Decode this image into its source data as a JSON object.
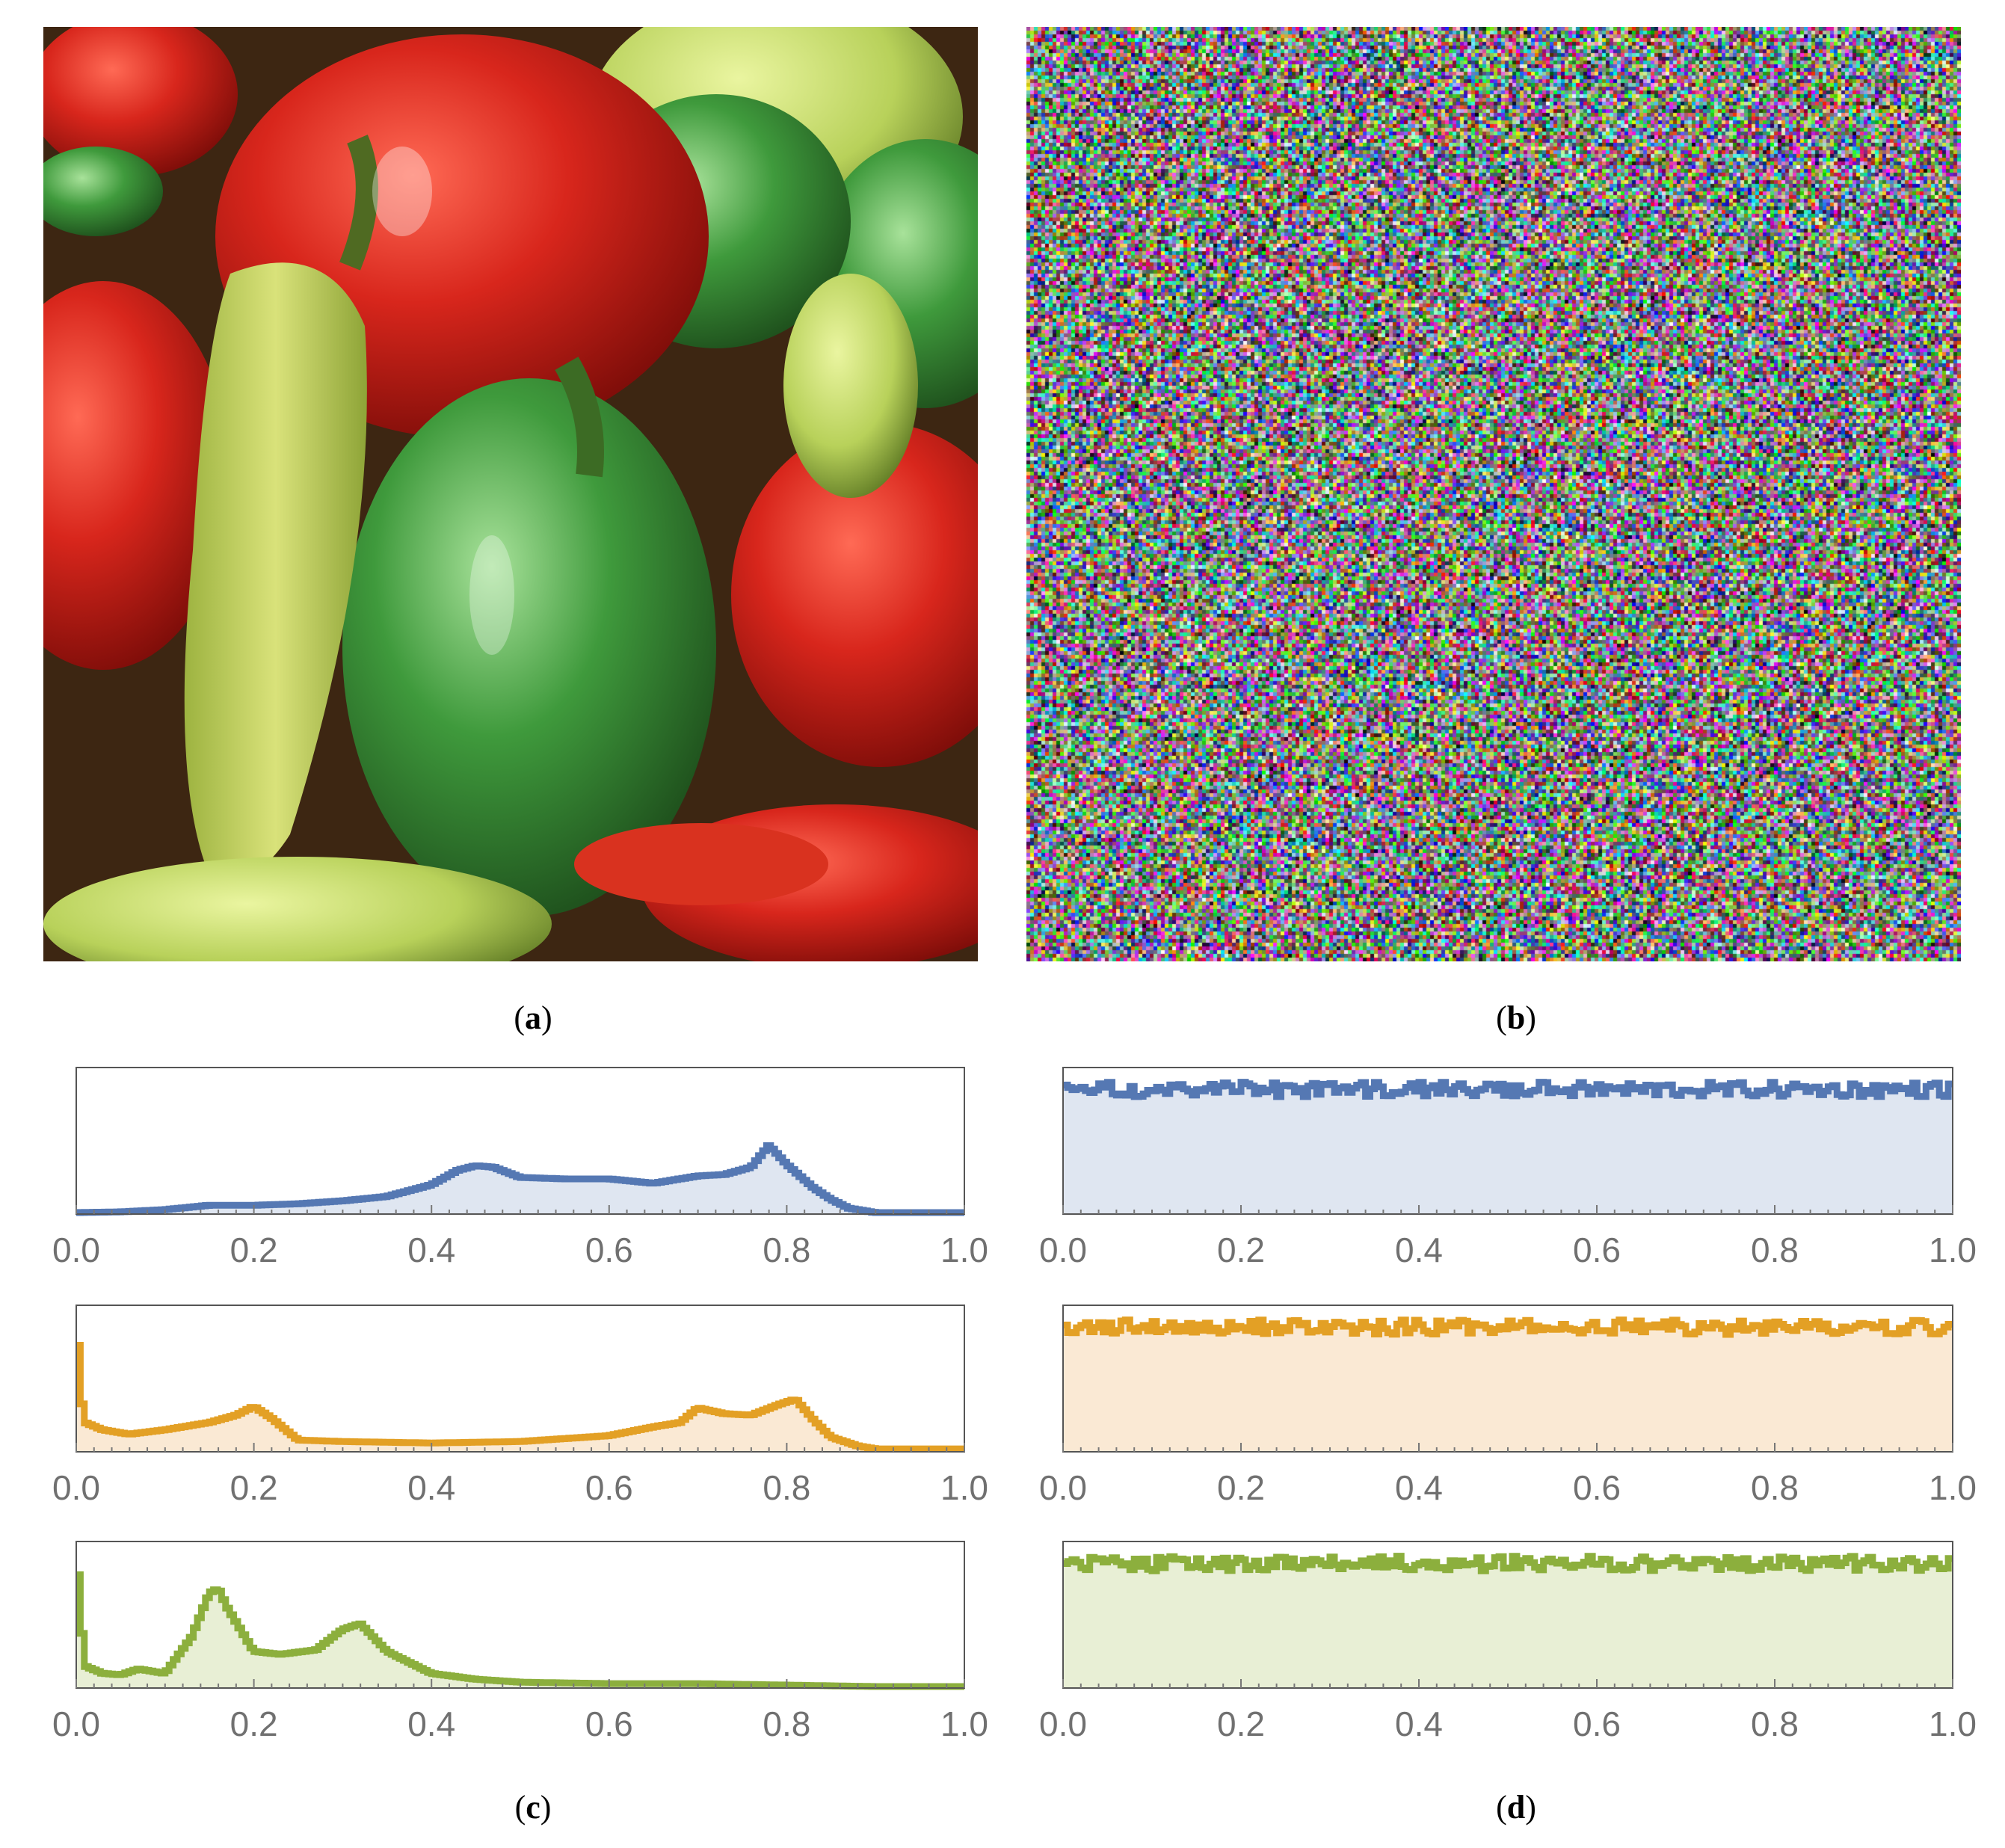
{
  "figure": {
    "panel_labels": {
      "a": {
        "open": "(",
        "letter": "a",
        "close": ")"
      },
      "b": {
        "open": "(",
        "letter": "b",
        "close": ")"
      },
      "c": {
        "open": "(",
        "letter": "c",
        "close": ")"
      },
      "d": {
        "open": "(",
        "letter": "d",
        "close": ")"
      }
    },
    "images": {
      "a": {
        "content": "peppers photograph (original image)"
      },
      "b": {
        "content": "colour noise (encrypted image)"
      }
    }
  },
  "colors": {
    "blue": "#5578B3",
    "orange": "#E3A025",
    "green": "#8CAF3D"
  },
  "chart_data": [
    {
      "type": "area",
      "panel": "c",
      "channel_color": "blue",
      "xlim": [
        0,
        1
      ],
      "x_ticks": [
        "0.0",
        "0.2",
        "0.4",
        "0.6",
        "0.8",
        "1.0"
      ],
      "grid": false,
      "x": [
        0,
        0.05,
        0.1,
        0.15,
        0.2,
        0.25,
        0.3,
        0.35,
        0.4,
        0.43,
        0.45,
        0.47,
        0.5,
        0.55,
        0.6,
        0.65,
        0.7,
        0.73,
        0.76,
        0.78,
        0.8,
        0.83,
        0.85,
        0.87,
        0.9,
        0.95,
        1.0
      ],
      "y": [
        0.01,
        0.015,
        0.03,
        0.06,
        0.06,
        0.07,
        0.09,
        0.12,
        0.2,
        0.3,
        0.33,
        0.32,
        0.25,
        0.24,
        0.24,
        0.21,
        0.26,
        0.27,
        0.32,
        0.47,
        0.34,
        0.18,
        0.1,
        0.04,
        0.01,
        0.01,
        0.01
      ]
    },
    {
      "type": "area",
      "panel": "c",
      "channel_color": "orange",
      "xlim": [
        0,
        1
      ],
      "x_ticks": [
        "0.0",
        "0.2",
        "0.4",
        "0.6",
        "0.8",
        "1.0"
      ],
      "grid": false,
      "x": [
        0,
        0.005,
        0.01,
        0.03,
        0.06,
        0.1,
        0.15,
        0.18,
        0.2,
        0.22,
        0.25,
        0.3,
        0.4,
        0.5,
        0.6,
        0.65,
        0.68,
        0.7,
        0.73,
        0.76,
        0.79,
        0.81,
        0.83,
        0.85,
        0.88,
        0.9,
        0.93,
        0.95,
        1.0
      ],
      "y": [
        1.0,
        0.4,
        0.2,
        0.15,
        0.12,
        0.15,
        0.2,
        0.25,
        0.31,
        0.23,
        0.08,
        0.07,
        0.06,
        0.07,
        0.11,
        0.17,
        0.2,
        0.3,
        0.26,
        0.25,
        0.32,
        0.36,
        0.22,
        0.1,
        0.04,
        0.02,
        0.02,
        0.02,
        0.02
      ]
    },
    {
      "type": "area",
      "panel": "c",
      "channel_color": "green",
      "xlim": [
        0,
        1
      ],
      "x_ticks": [
        "0.0",
        "0.2",
        "0.4",
        "0.6",
        "0.8",
        "1.0"
      ],
      "grid": false,
      "x": [
        0,
        0.005,
        0.01,
        0.03,
        0.05,
        0.07,
        0.1,
        0.13,
        0.15,
        0.16,
        0.17,
        0.2,
        0.23,
        0.27,
        0.3,
        0.32,
        0.35,
        0.4,
        0.45,
        0.5,
        0.6,
        0.7,
        0.8,
        0.9,
        1.0
      ],
      "y": [
        1.0,
        0.5,
        0.15,
        0.1,
        0.09,
        0.13,
        0.1,
        0.35,
        0.65,
        0.68,
        0.55,
        0.25,
        0.23,
        0.26,
        0.4,
        0.44,
        0.25,
        0.1,
        0.06,
        0.04,
        0.03,
        0.03,
        0.02,
        0.01,
        0.01
      ]
    },
    {
      "type": "area",
      "panel": "d",
      "channel_color": "blue",
      "xlim": [
        0,
        1
      ],
      "x_ticks": [
        "0.0",
        "0.2",
        "0.4",
        "0.6",
        "0.8",
        "1.0"
      ],
      "grid": false,
      "bins": 200,
      "level": 0.85,
      "noise": 0.05
    },
    {
      "type": "area",
      "panel": "d",
      "channel_color": "orange",
      "xlim": [
        0,
        1
      ],
      "x_ticks": [
        "0.0",
        "0.2",
        "0.4",
        "0.6",
        "0.8",
        "1.0"
      ],
      "grid": false,
      "bins": 200,
      "level": 0.85,
      "noise": 0.05
    },
    {
      "type": "area",
      "panel": "d",
      "channel_color": "green",
      "xlim": [
        0,
        1
      ],
      "x_ticks": [
        "0.0",
        "0.2",
        "0.4",
        "0.6",
        "0.8",
        "1.0"
      ],
      "grid": false,
      "bins": 200,
      "level": 0.85,
      "noise": 0.05
    }
  ]
}
